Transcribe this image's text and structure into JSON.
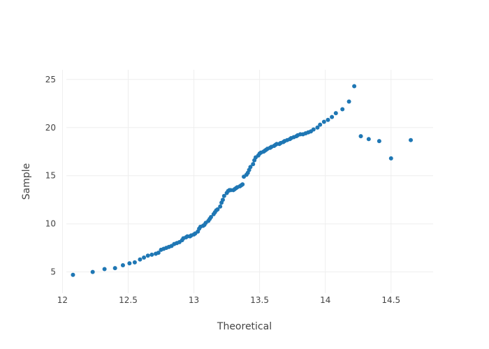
{
  "chart_data": {
    "type": "scatter",
    "title": "",
    "xlabel": "Theoretical",
    "ylabel": "Sample",
    "xlim": [
      11.95,
      14.82
    ],
    "ylim": [
      2.8,
      26.0
    ],
    "xticks": [
      12,
      12.5,
      13,
      13.5,
      14,
      14.5
    ],
    "xtick_labels": [
      "12",
      "12.5",
      "13",
      "13.5",
      "14",
      "14.5"
    ],
    "yticks": [
      5,
      10,
      15,
      20,
      25
    ],
    "ytick_labels": [
      "5",
      "10",
      "15",
      "20",
      "25"
    ],
    "grid": true,
    "legend": "none",
    "marker_color": "#1f77b4",
    "series": [
      {
        "x": [
          12.08,
          12.23,
          12.32,
          12.4,
          12.46,
          12.51,
          12.55,
          12.59,
          12.62,
          12.65,
          12.68,
          12.71,
          12.73,
          12.75,
          12.77,
          12.79,
          12.81,
          12.83,
          12.85,
          12.87,
          12.89,
          12.91,
          12.92,
          12.94,
          12.95,
          12.97,
          12.98,
          13.0,
          13.01,
          13.03,
          13.04,
          13.05,
          13.07,
          13.08,
          13.09,
          13.11,
          13.12,
          13.13,
          13.15,
          13.16,
          13.17,
          13.18,
          13.2,
          13.21,
          13.22,
          13.23,
          13.25,
          13.26,
          13.27,
          13.28,
          13.3,
          13.31,
          13.32,
          13.33,
          13.35,
          13.36,
          13.37,
          13.38,
          13.4,
          13.41,
          13.42,
          13.43,
          13.45,
          13.46,
          13.47,
          13.49,
          13.5,
          13.51,
          13.53,
          13.54,
          13.55,
          13.56,
          13.58,
          13.59,
          13.61,
          13.62,
          13.63,
          13.65,
          13.66,
          13.68,
          13.69,
          13.71,
          13.73,
          13.74,
          13.76,
          13.78,
          13.79,
          13.81,
          13.83,
          13.85,
          13.87,
          13.89,
          13.91,
          13.94,
          13.96,
          13.99,
          14.02,
          14.05,
          14.08,
          14.13,
          14.18,
          14.22,
          14.27,
          14.33,
          14.41,
          14.5,
          14.65
        ],
        "y": [
          4.7,
          5.0,
          5.3,
          5.4,
          5.7,
          5.9,
          6.0,
          6.3,
          6.5,
          6.7,
          6.8,
          6.9,
          7.0,
          7.3,
          7.4,
          7.5,
          7.6,
          7.7,
          7.9,
          8.0,
          8.1,
          8.3,
          8.5,
          8.6,
          8.7,
          8.7,
          8.8,
          8.9,
          9.0,
          9.2,
          9.5,
          9.7,
          9.8,
          9.9,
          10.1,
          10.3,
          10.5,
          10.7,
          11.0,
          11.2,
          11.4,
          11.5,
          11.8,
          12.2,
          12.5,
          12.9,
          13.2,
          13.4,
          13.5,
          13.5,
          13.5,
          13.6,
          13.7,
          13.8,
          13.9,
          14.0,
          14.1,
          14.9,
          15.1,
          15.3,
          15.6,
          15.9,
          16.2,
          16.6,
          16.9,
          17.1,
          17.3,
          17.4,
          17.5,
          17.6,
          17.7,
          17.8,
          17.9,
          18.0,
          18.1,
          18.2,
          18.3,
          18.3,
          18.4,
          18.5,
          18.6,
          18.7,
          18.8,
          18.9,
          19.0,
          19.1,
          19.2,
          19.3,
          19.3,
          19.4,
          19.5,
          19.6,
          19.8,
          20.0,
          20.3,
          20.6,
          20.8,
          21.1,
          21.5,
          21.9,
          22.7,
          24.3,
          19.1,
          18.8,
          18.6,
          16.8,
          18.7
        ],
        "note_x_sorted": true
      }
    ]
  }
}
